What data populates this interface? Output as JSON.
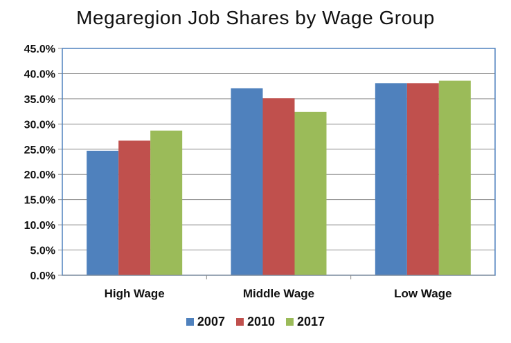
{
  "chart_data": {
    "type": "bar",
    "title": "Megaregion Job Shares by Wage Group",
    "xlabel": "",
    "ylabel": "",
    "categories": [
      "High Wage",
      "Middle Wage",
      "Low Wage"
    ],
    "series": [
      {
        "name": "2007",
        "color": "#4f81bd",
        "values": [
          24.7,
          37.1,
          38.1
        ]
      },
      {
        "name": "2010",
        "color": "#c0504d",
        "values": [
          26.7,
          35.1,
          38.1
        ]
      },
      {
        "name": "2017",
        "color": "#9bbb59",
        "values": [
          28.7,
          32.4,
          38.6
        ]
      }
    ],
    "ylim": [
      0,
      45
    ],
    "yticks": [
      "0.0%",
      "5.0%",
      "10.0%",
      "15.0%",
      "20.0%",
      "25.0%",
      "30.0%",
      "35.0%",
      "40.0%",
      "45.0%"
    ],
    "grid": true,
    "legend_position": "bottom"
  }
}
